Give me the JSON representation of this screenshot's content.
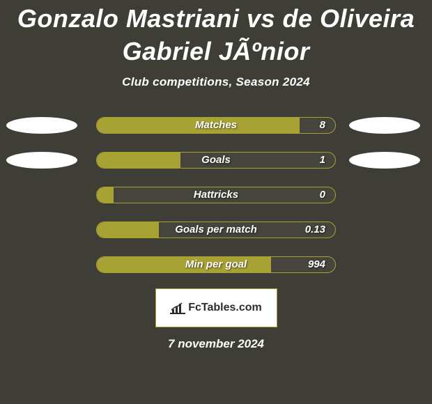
{
  "colors": {
    "background": "#3e3e36",
    "text": "#ffffff",
    "ellipse": "#ffffff",
    "pill_border": "#a8a235",
    "pill_fill": "#a8a235",
    "pill_bg": "rgba(255,255,255,0.04)",
    "logo_bg": "#ffffff",
    "logo_border": "#a8a235",
    "logo_text": "#2c2c2c"
  },
  "typography": {
    "title_size": 36,
    "subtitle_size": 17,
    "stat_label_size": 15,
    "date_size": 17
  },
  "title": "Gonzalo Mastriani vs de Oliveira Gabriel JÃºnior",
  "subtitle": "Club competitions, Season 2024",
  "stats": [
    {
      "label": "Matches",
      "value": "8",
      "fill_pct": 85,
      "show_left_ellipse": true,
      "show_right_ellipse": true
    },
    {
      "label": "Goals",
      "value": "1",
      "fill_pct": 35,
      "show_left_ellipse": true,
      "show_right_ellipse": true
    },
    {
      "label": "Hattricks",
      "value": "0",
      "fill_pct": 7,
      "show_left_ellipse": false,
      "show_right_ellipse": false
    },
    {
      "label": "Goals per match",
      "value": "0.13",
      "fill_pct": 26,
      "show_left_ellipse": false,
      "show_right_ellipse": false
    },
    {
      "label": "Min per goal",
      "value": "994",
      "fill_pct": 73,
      "show_left_ellipse": false,
      "show_right_ellipse": false
    }
  ],
  "logo_text": "FcTables.com",
  "date": "7 november 2024"
}
